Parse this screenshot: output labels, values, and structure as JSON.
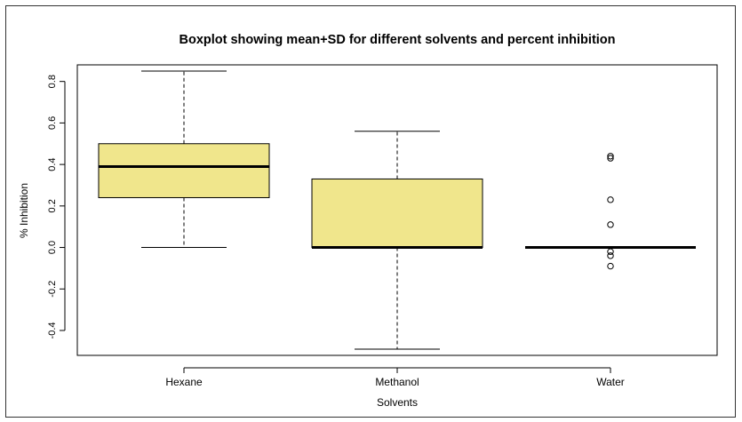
{
  "chart_data": {
    "type": "box",
    "title": "Boxplot showing mean+SD for different solvents and percent inhibition",
    "xlabel": "Solvents",
    "ylabel": "% Inhibition",
    "ylim": [
      -0.52,
      0.88
    ],
    "yticks": [
      -0.4,
      -0.2,
      0.0,
      0.2,
      0.4,
      0.6,
      0.8
    ],
    "ytick_labels": [
      "-0.4",
      "-0.2",
      "0.0",
      "0.2",
      "0.4",
      "0.6",
      "0.8"
    ],
    "categories": [
      "Hexane",
      "Methanol",
      "Water"
    ],
    "boxes": [
      {
        "category": "Hexane",
        "whisker_low": 0.0,
        "q1": 0.24,
        "median": 0.39,
        "q3": 0.5,
        "whisker_high": 0.85,
        "outliers": []
      },
      {
        "category": "Methanol",
        "whisker_low": -0.49,
        "q1": 0.0,
        "median": 0.0,
        "q3": 0.33,
        "whisker_high": 0.56,
        "outliers": []
      },
      {
        "category": "Water",
        "whisker_low": 0.0,
        "q1": 0.0,
        "median": 0.0,
        "q3": 0.0,
        "whisker_high": 0.0,
        "outliers": [
          0.44,
          0.43,
          0.23,
          0.11,
          -0.02,
          -0.04,
          -0.09
        ]
      }
    ],
    "box_fill": "#f0e68c",
    "grid": false,
    "legend": "none"
  }
}
